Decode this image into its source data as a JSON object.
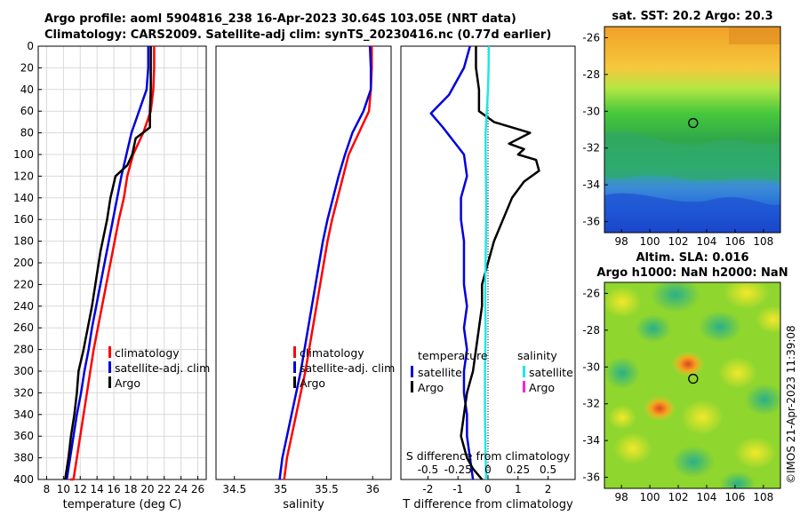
{
  "header": {
    "title_line1": "Argo profile: aoml 5904816_238 16-Apr-2023 30.64S 103.05E (NRT data)",
    "title_line2": "Climatology: CARS2009. Satellite-adj clim: synTS_20230416.nc (0.77d earlier)"
  },
  "footer": {
    "stamp": "©IMOS 21-Apr-2023 11:39:08"
  },
  "colors": {
    "climatology": "#ff0000",
    "satellite": "#0000dd",
    "argo": "#000000",
    "salinity_sat": "#22e6e6",
    "salinity_argo": "#ff22cc"
  },
  "chart_data": [
    {
      "id": "temperature",
      "type": "line",
      "xlabel": "temperature (deg C)",
      "ylabel": "",
      "xlim": [
        7,
        27
      ],
      "ylim": [
        400,
        0
      ],
      "xticks": [
        8,
        10,
        12,
        14,
        16,
        18,
        20,
        22,
        24,
        26
      ],
      "yticks": [
        0,
        20,
        40,
        60,
        80,
        100,
        120,
        140,
        160,
        180,
        200,
        220,
        240,
        260,
        280,
        300,
        320,
        340,
        360,
        380,
        400
      ],
      "grid": true,
      "legend": {
        "placement": "bottom-right",
        "entries": [
          "climatology",
          "satellite-adj. clim",
          "Argo"
        ]
      },
      "series": [
        {
          "name": "climatology",
          "color": "#ff0000",
          "x": [
            20.8,
            20.8,
            20.7,
            20.4,
            19.5,
            18.3,
            17.6,
            17.2,
            16.6,
            16.1,
            15.6,
            15.1,
            14.6,
            14.1,
            13.6,
            13.2,
            12.8,
            12.4,
            12.0,
            11.6,
            11.2,
            10.8
          ],
          "y": [
            0,
            20,
            40,
            60,
            80,
            100,
            120,
            140,
            160,
            180,
            200,
            220,
            240,
            260,
            280,
            300,
            320,
            340,
            360,
            380,
            400,
            400
          ]
        },
        {
          "name": "satellite-adj. clim",
          "color": "#0000dd",
          "x": [
            20.1,
            20.1,
            19.9,
            19.0,
            18.1,
            17.5,
            16.9,
            16.4,
            15.9,
            15.4,
            14.9,
            14.4,
            13.9,
            13.4,
            13.0,
            12.5,
            12.1,
            11.6,
            11.2,
            10.8,
            10.4
          ],
          "y": [
            0,
            20,
            40,
            60,
            80,
            100,
            120,
            140,
            160,
            180,
            200,
            220,
            240,
            260,
            280,
            300,
            320,
            340,
            360,
            380,
            400
          ]
        },
        {
          "name": "Argo",
          "color": "#000000",
          "x": [
            20.4,
            20.4,
            20.4,
            20.3,
            20.3,
            18.6,
            18.2,
            17.6,
            16.2,
            15.6,
            15.2,
            14.4,
            13.8,
            13.4,
            12.9,
            12.4,
            11.8,
            11.6,
            11.3,
            10.9,
            10.6,
            10.4,
            10.3,
            10.2
          ],
          "y": [
            0,
            20,
            40,
            60,
            75,
            85,
            100,
            110,
            120,
            140,
            160,
            190,
            220,
            240,
            260,
            280,
            300,
            320,
            340,
            360,
            380,
            390,
            395,
            400
          ]
        }
      ]
    },
    {
      "id": "salinity",
      "type": "line",
      "xlabel": "salinity",
      "ylabel": "",
      "xlim": [
        34.3,
        36.2
      ],
      "ylim": [
        400,
        0
      ],
      "xticks": [
        34.5,
        35,
        35.5,
        36
      ],
      "grid": false,
      "legend": {
        "placement": "bottom-right",
        "entries": [
          "climatology",
          "satellite-adj. clim",
          "Argo"
        ]
      },
      "series": [
        {
          "name": "climatology",
          "color": "#ff0000",
          "x": [
            35.99,
            35.99,
            35.98,
            35.96,
            35.85,
            35.74,
            35.68,
            35.62,
            35.56,
            35.51,
            35.47,
            35.43,
            35.39,
            35.35,
            35.31,
            35.27,
            35.22,
            35.17,
            35.12,
            35.07,
            35.04
          ],
          "y": [
            0,
            20,
            40,
            60,
            80,
            100,
            120,
            140,
            160,
            180,
            200,
            220,
            240,
            260,
            280,
            300,
            320,
            340,
            360,
            380,
            400
          ]
        },
        {
          "name": "satellite-adj. clim",
          "color": "#0000dd",
          "x": [
            35.97,
            35.98,
            35.98,
            35.9,
            35.78,
            35.7,
            35.63,
            35.57,
            35.51,
            35.46,
            35.42,
            35.38,
            35.34,
            35.3,
            35.26,
            35.22,
            35.17,
            35.12,
            35.07,
            35.02,
            34.99
          ],
          "y": [
            0,
            20,
            40,
            60,
            80,
            100,
            120,
            140,
            160,
            180,
            200,
            220,
            240,
            260,
            280,
            300,
            320,
            340,
            360,
            380,
            400
          ]
        }
      ]
    },
    {
      "id": "difference",
      "type": "line",
      "xlabel": "T difference from climatology",
      "top_label": "S difference from climatology",
      "xlim": [
        -2.9,
        2.9
      ],
      "ylim": [
        400,
        0
      ],
      "xticks": [
        -2,
        -1,
        0,
        1,
        2
      ],
      "sticks_labels": [
        "-0.5",
        "-0.25",
        "0",
        "0.25",
        "0.5"
      ],
      "sticks": [
        -0.5,
        -0.25,
        0,
        0.25,
        0.5
      ],
      "grid": false,
      "legend": {
        "placement": "bottom",
        "temperature_title": "temperature",
        "salinity_title": "salinity",
        "temperature_entries": [
          "satellite",
          "Argo"
        ],
        "salinity_entries": [
          "satellite",
          "Argo"
        ]
      },
      "series": [
        {
          "name": "T satellite",
          "color": "#0000dd",
          "x": [
            -0.6,
            -0.8,
            -1.3,
            -1.9,
            -1.5,
            -0.8,
            -0.7,
            -0.9,
            -0.9,
            -0.8,
            -0.8,
            -0.8,
            -0.7,
            -0.8,
            -0.7,
            -0.8,
            -0.8,
            -0.7,
            -0.7,
            -0.6,
            -0.5
          ],
          "y": [
            0,
            20,
            45,
            62,
            75,
            100,
            120,
            140,
            160,
            180,
            200,
            220,
            240,
            260,
            280,
            300,
            320,
            340,
            360,
            380,
            400
          ]
        },
        {
          "name": "T Argo",
          "color": "#000000",
          "x": [
            -0.4,
            -0.4,
            -0.3,
            -0.3,
            0.2,
            1.4,
            0.7,
            1.2,
            1.0,
            1.6,
            1.7,
            1.2,
            0.8,
            0.5,
            0.2,
            0.0,
            -0.2,
            -0.2,
            -0.3,
            -0.4,
            -0.5,
            -0.6,
            -0.7,
            -0.8,
            -0.9,
            -0.8,
            -0.7,
            -0.5,
            -0.2
          ],
          "y": [
            0,
            20,
            40,
            60,
            70,
            80,
            90,
            95,
            100,
            105,
            115,
            125,
            140,
            160,
            180,
            200,
            220,
            240,
            260,
            280,
            300,
            310,
            320,
            340,
            360,
            370,
            380,
            390,
            400
          ]
        },
        {
          "name": "S satellite",
          "color": "#22e6e6",
          "x": [
            0.03,
            0.02,
            0.0,
            -0.04,
            -0.08,
            -0.08,
            -0.07,
            -0.06,
            -0.06,
            -0.07,
            -0.08,
            -0.09,
            -0.09,
            -0.08,
            -0.09,
            -0.1,
            -0.1,
            -0.1,
            -0.09,
            -0.08,
            -0.06
          ],
          "y": [
            0,
            20,
            40,
            60,
            80,
            100,
            120,
            140,
            160,
            180,
            200,
            220,
            240,
            260,
            280,
            300,
            320,
            340,
            360,
            380,
            400
          ]
        }
      ]
    },
    {
      "id": "sst_map",
      "type": "heatmap",
      "title": "sat. SST: 20.2  Argo: 20.3",
      "xticks": [
        98,
        100,
        102,
        104,
        106,
        108
      ],
      "yticks": [
        -26,
        -28,
        -30,
        -32,
        -34,
        -36
      ],
      "xlim": [
        96.8,
        109.2
      ],
      "ylim": [
        -36.6,
        -25.4
      ],
      "marker": {
        "lon": 103.05,
        "lat": -30.64
      }
    },
    {
      "id": "sla_map",
      "type": "heatmap",
      "title": "Altim. SLA: 0.016",
      "subtitle": "Argo h1000: NaN h2000: NaN",
      "xticks": [
        98,
        100,
        102,
        104,
        106,
        108
      ],
      "yticks": [
        -26,
        -28,
        -30,
        -32,
        -34,
        -36
      ],
      "xlim": [
        96.8,
        109.2
      ],
      "ylim": [
        -36.6,
        -25.4
      ],
      "marker": {
        "lon": 103.05,
        "lat": -30.64
      }
    }
  ]
}
